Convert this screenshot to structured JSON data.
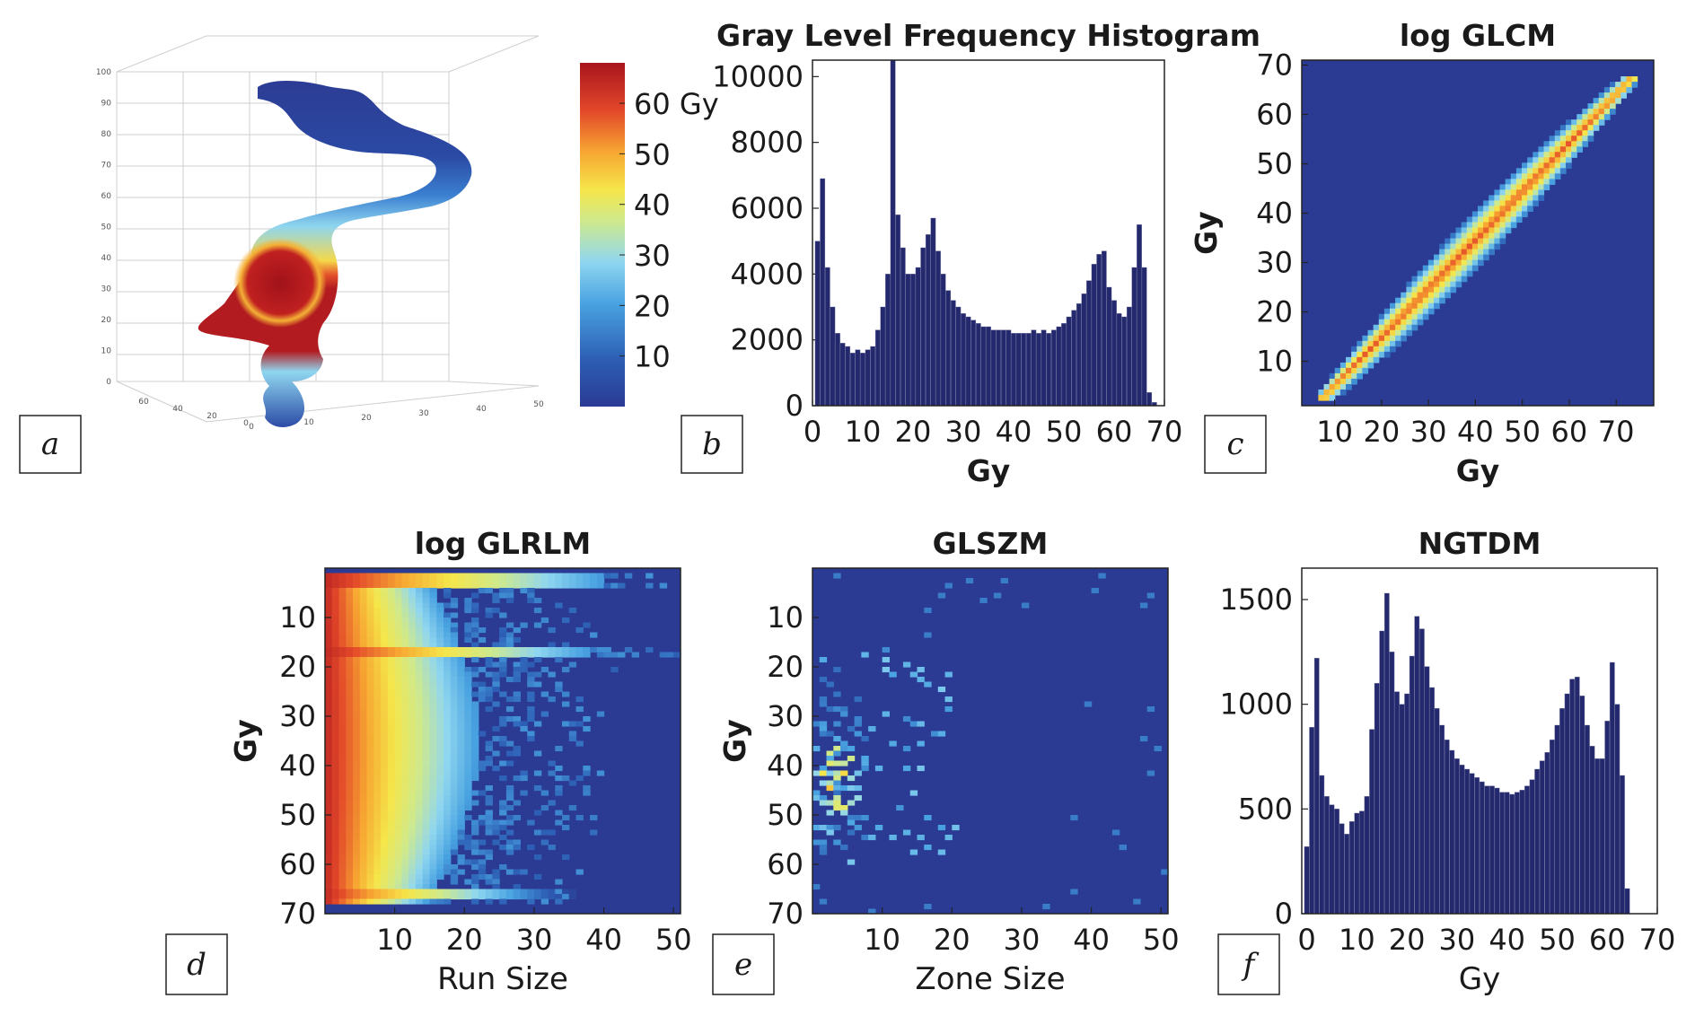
{
  "colors": {
    "bar": "#24296e",
    "background_dark": "#2b3a93",
    "jet": [
      "#2a3a93",
      "#2d5fb5",
      "#49a3e1",
      "#8fd6f0",
      "#cfe98c",
      "#f5e64a",
      "#f7a732",
      "#e3482a",
      "#a8151d"
    ]
  },
  "panel_labels": [
    "a",
    "b",
    "c",
    "d",
    "e",
    "f"
  ],
  "chart_data": [
    {
      "id": "a",
      "type": "other",
      "title": "",
      "description_kind": "3D dose surface with colorbar",
      "colorbar": {
        "ticks": [
          10,
          20,
          30,
          40,
          50,
          60
        ],
        "tick_labels": [
          "10",
          "20",
          "30",
          "40",
          "50",
          "60 Gy"
        ],
        "range": [
          0,
          68
        ]
      },
      "z_ticks": [
        "0",
        "10",
        "20",
        "30",
        "40",
        "50",
        "60",
        "70",
        "80",
        "90",
        "100"
      ],
      "x_ticks": [
        "0",
        "10",
        "20",
        "30",
        "40",
        "50"
      ],
      "y_ticks": [
        "60",
        "40",
        "20",
        "0"
      ]
    },
    {
      "id": "b",
      "type": "bar",
      "title": "Gray Level Frequency Histogram",
      "xlabel": "Gy",
      "ylabel": "",
      "xlim": [
        0,
        70
      ],
      "ylim": [
        0,
        10500
      ],
      "xticks": [
        0,
        10,
        20,
        30,
        40,
        50,
        60,
        70
      ],
      "yticks": [
        0,
        2000,
        4000,
        6000,
        8000,
        10000
      ],
      "x": [
        1,
        2,
        3,
        4,
        5,
        6,
        7,
        8,
        9,
        10,
        11,
        12,
        13,
        14,
        15,
        16,
        17,
        18,
        19,
        20,
        21,
        22,
        23,
        24,
        25,
        26,
        27,
        28,
        29,
        30,
        31,
        32,
        33,
        34,
        35,
        36,
        37,
        38,
        39,
        40,
        41,
        42,
        43,
        44,
        45,
        46,
        47,
        48,
        49,
        50,
        51,
        52,
        53,
        54,
        55,
        56,
        57,
        58,
        59,
        60,
        61,
        62,
        63,
        64,
        65,
        66,
        67,
        68
      ],
      "values": [
        5000,
        6900,
        4200,
        3000,
        2200,
        1900,
        1800,
        1600,
        1700,
        1600,
        1700,
        1800,
        2300,
        3000,
        4000,
        10500,
        5800,
        4800,
        4000,
        4000,
        4200,
        4800,
        5200,
        5700,
        4700,
        4000,
        3500,
        3200,
        3000,
        2800,
        2700,
        2600,
        2500,
        2400,
        2400,
        2300,
        2300,
        2300,
        2300,
        2200,
        2200,
        2200,
        2200,
        2300,
        2200,
        2300,
        2200,
        2300,
        2400,
        2500,
        2700,
        2900,
        3100,
        3400,
        3800,
        4300,
        4600,
        4700,
        3600,
        3200,
        2800,
        2700,
        3000,
        4200,
        5500,
        4200,
        400,
        100
      ]
    },
    {
      "id": "c",
      "type": "heatmap",
      "title": "log GLCM",
      "xlabel": "Gy",
      "ylabel": "Gy",
      "xlim": [
        3,
        78
      ],
      "ylim": [
        1,
        71
      ],
      "xticks": [
        10,
        20,
        30,
        40,
        50,
        60,
        70
      ],
      "yticks": [
        10,
        20,
        30,
        40,
        50,
        60,
        70
      ],
      "pattern": "diagonal band from (8,3) to (73,67), intensity highest on diagonal"
    },
    {
      "id": "d",
      "type": "heatmap",
      "title": "log GLRLM",
      "xlabel": "Run Size",
      "ylabel": "Gy",
      "xlim": [
        0,
        51
      ],
      "ylim": [
        0,
        70
      ],
      "xticks": [
        10,
        20,
        30,
        40,
        50
      ],
      "yticks": [
        10,
        20,
        30,
        40,
        50,
        60,
        70
      ],
      "pattern": "high intensity at small run sizes, decreasing to the right; bright stripes near 17 and 65 Gy"
    },
    {
      "id": "e",
      "type": "heatmap",
      "title": "GLSZM",
      "xlabel": "Zone Size",
      "ylabel": "Gy",
      "xlim": [
        0,
        51
      ],
      "ylim": [
        0,
        70
      ],
      "xticks": [
        10,
        20,
        30,
        40,
        50
      ],
      "yticks": [
        10,
        20,
        30,
        40,
        50,
        60,
        70
      ],
      "pattern": "sparse cells concentrated at small zone sizes around 35-50 Gy"
    },
    {
      "id": "f",
      "type": "bar",
      "title": "NGTDM",
      "xlabel": "Gy",
      "ylabel": "",
      "xlim": [
        -1,
        70
      ],
      "ylim": [
        0,
        1650
      ],
      "xticks": [
        0,
        10,
        20,
        30,
        40,
        50,
        60,
        70
      ],
      "yticks": [
        0,
        500,
        1000,
        1500
      ],
      "x": [
        0,
        1,
        2,
        3,
        4,
        5,
        6,
        7,
        8,
        9,
        10,
        11,
        12,
        13,
        14,
        15,
        16,
        17,
        18,
        19,
        20,
        21,
        22,
        23,
        24,
        25,
        26,
        27,
        28,
        29,
        30,
        31,
        32,
        33,
        34,
        35,
        36,
        37,
        38,
        39,
        40,
        41,
        42,
        43,
        44,
        45,
        46,
        47,
        48,
        49,
        50,
        51,
        52,
        53,
        54,
        55,
        56,
        57,
        58,
        59,
        60,
        61,
        62,
        63,
        64,
        65,
        66,
        67
      ],
      "values": [
        320,
        890,
        1220,
        660,
        560,
        520,
        500,
        430,
        380,
        440,
        480,
        490,
        560,
        880,
        1100,
        1350,
        1530,
        1250,
        1060,
        1000,
        1050,
        1230,
        1420,
        1360,
        1180,
        1080,
        980,
        900,
        830,
        780,
        740,
        710,
        690,
        670,
        650,
        630,
        610,
        610,
        600,
        580,
        580,
        570,
        580,
        590,
        610,
        640,
        690,
        730,
        770,
        830,
        900,
        980,
        1050,
        1120,
        1130,
        1040,
        900,
        800,
        740,
        740,
        920,
        1200,
        1000,
        660,
        120,
        0,
        0,
        0
      ]
    }
  ]
}
